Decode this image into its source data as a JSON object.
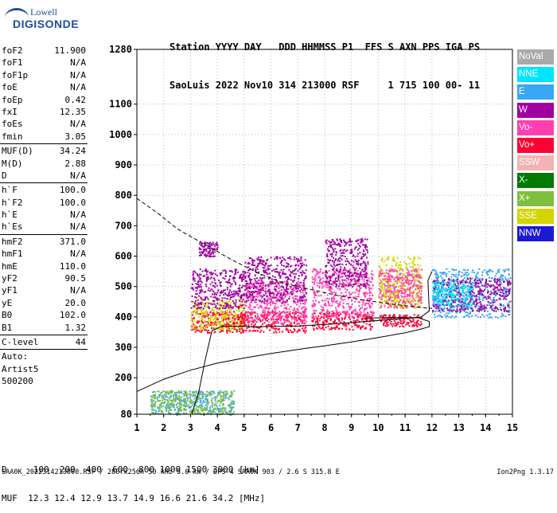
{
  "logo": {
    "line1": "Lowell",
    "line2": "DIGISONDE"
  },
  "header": {
    "line1": "Station YYYY DAY   DDD HHMMSS P1  FFS S AXN PPS IGA PS",
    "line2": "SaoLuis 2022 Nov10 314 213000 RSF     1 715 100 00- 11"
  },
  "params": {
    "group1": [
      {
        "name": "foF2",
        "value": "11.900"
      },
      {
        "name": "foF1",
        "value": "N/A"
      },
      {
        "name": "foF1p",
        "value": "N/A"
      },
      {
        "name": "foE",
        "value": "N/A"
      },
      {
        "name": "foEp",
        "value": "0.42"
      },
      {
        "name": "fxI",
        "value": "12.35"
      },
      {
        "name": "foEs",
        "value": "N/A"
      },
      {
        "name": "fmin",
        "value": "3.05"
      }
    ],
    "group2": [
      {
        "name": "MUF(D)",
        "value": "34.24"
      },
      {
        "name": "M(D)",
        "value": "2.88"
      },
      {
        "name": "D",
        "value": "N/A"
      }
    ],
    "group3": [
      {
        "name": "h`F",
        "value": "100.0"
      },
      {
        "name": "h`F2",
        "value": "100.0"
      },
      {
        "name": "h`E",
        "value": "N/A"
      },
      {
        "name": "h`Es",
        "value": "N/A"
      }
    ],
    "group4": [
      {
        "name": "hmF2",
        "value": "371.0"
      },
      {
        "name": "hmF1",
        "value": "N/A"
      },
      {
        "name": "hmE",
        "value": "110.0"
      },
      {
        "name": "yF2",
        "value": "90.5"
      },
      {
        "name": "yF1",
        "value": "N/A"
      },
      {
        "name": "yE",
        "value": "20.0"
      },
      {
        "name": "B0",
        "value": "102.0"
      },
      {
        "name": "B1",
        "value": "1.32"
      }
    ],
    "group5": [
      {
        "name": "C-level",
        "value": "44"
      }
    ],
    "auto": {
      "label": "Auto:",
      "artist": "Artist5",
      "version": "500200"
    }
  },
  "legend": [
    {
      "label": "NoVal",
      "color": "#a9a9a9"
    },
    {
      "label": "NNE",
      "color": "#00e5ff"
    },
    {
      "label": "E",
      "color": "#3aa6f5"
    },
    {
      "label": "W",
      "color": "#a000a0"
    },
    {
      "label": "Vo-",
      "color": "#ff3fb0"
    },
    {
      "label": "Vo+",
      "color": "#ff0033"
    },
    {
      "label": "SSW",
      "color": "#f3b3b3"
    },
    {
      "label": "X-",
      "color": "#007a00"
    },
    {
      "label": "X+",
      "color": "#7fbf3f"
    },
    {
      "label": "SSE",
      "color": "#d4d400"
    },
    {
      "label": "NNW",
      "color": "#1a1ad4"
    }
  ],
  "bottom": {
    "d_line": "D     100  200  400  600  800 1000 1500 3000 [km]",
    "muf_line": "MUF  12.3 12.4 12.9 13.7 14.9 16.6 21.6 34.2 [MHz]",
    "footer": "SAA0K_2022314213000.RSF / 280fx256h 50 kHz 5.0 km / DPS-4 SAA0K 903 / 2.6 S 315.8 E",
    "version": "Ion2Png 1.3.17"
  },
  "chart_data": {
    "type": "scatter",
    "xlim": [
      1,
      15
    ],
    "ylim": [
      80,
      1280
    ],
    "x_ticks": [
      "1",
      "2",
      "3",
      "4",
      "5",
      "6",
      "7",
      "8",
      "9",
      "10",
      "11",
      "12",
      "13",
      "14",
      "15"
    ],
    "y_ticks": [
      {
        "v": 80,
        "label": "80"
      },
      {
        "v": 200,
        "label": "200"
      },
      {
        "v": 300,
        "label": "300"
      },
      {
        "v": 400,
        "label": "400"
      },
      {
        "v": 500,
        "label": "500"
      },
      {
        "v": 600,
        "label": "600"
      },
      {
        "v": 700,
        "label": "700"
      },
      {
        "v": 800,
        "label": "800"
      },
      {
        "v": 900,
        "label": "900"
      },
      {
        "v": 1000,
        "label": "1000"
      },
      {
        "v": 1100,
        "label": "1100"
      },
      {
        "v": 1280,
        "label": "1280"
      }
    ],
    "grid": "dotted",
    "clusters": [
      {
        "x": [
          3.0,
          5.0
        ],
        "y": [
          350,
          420
        ],
        "color": "#ff0033"
      },
      {
        "x": [
          3.0,
          5.0
        ],
        "y": [
          360,
          460
        ],
        "color": "#d4d400"
      },
      {
        "x": [
          3.0,
          5.0
        ],
        "y": [
          430,
          560
        ],
        "color": "#a000a0"
      },
      {
        "x": [
          3.3,
          4.0
        ],
        "y": [
          600,
          650
        ],
        "color": "#a000a0"
      },
      {
        "x": [
          4.7,
          7.3
        ],
        "y": [
          350,
          420
        ],
        "color": "#ff0033"
      },
      {
        "x": [
          5.0,
          7.3
        ],
        "y": [
          380,
          520
        ],
        "color": "#ff3fb0"
      },
      {
        "x": [
          5.0,
          7.3
        ],
        "y": [
          450,
          600
        ],
        "color": "#a000a0"
      },
      {
        "x": [
          7.5,
          9.8
        ],
        "y": [
          360,
          420
        ],
        "color": "#ff0033"
      },
      {
        "x": [
          7.5,
          9.8
        ],
        "y": [
          400,
          560
        ],
        "color": "#ff3fb0"
      },
      {
        "x": [
          8.0,
          9.6
        ],
        "y": [
          500,
          660
        ],
        "color": "#a000a0"
      },
      {
        "x": [
          10.0,
          11.6
        ],
        "y": [
          370,
          410
        ],
        "color": "#ff0033"
      },
      {
        "x": [
          10.0,
          11.6
        ],
        "y": [
          430,
          600
        ],
        "color": "#d4d400"
      },
      {
        "x": [
          10.0,
          11.6
        ],
        "y": [
          430,
          560
        ],
        "color": "#ff3fb0"
      },
      {
        "x": [
          12.0,
          14.9
        ],
        "y": [
          400,
          560
        ],
        "color": "#3aa6f5"
      },
      {
        "x": [
          12.0,
          14.9
        ],
        "y": [
          420,
          530
        ],
        "color": "#a000a0"
      },
      {
        "x": [
          12.0,
          13.5
        ],
        "y": [
          430,
          520
        ],
        "color": "#00e5ff"
      },
      {
        "x": [
          1.5,
          4.6
        ],
        "y": [
          82,
          160
        ],
        "color": "#3aa6f5"
      },
      {
        "x": [
          1.5,
          4.6
        ],
        "y": [
          82,
          160
        ],
        "color": "#7fbf3f"
      }
    ],
    "curves": [
      {
        "style": "dashed",
        "points": [
          [
            1.0,
            790
          ],
          [
            1.8,
            740
          ],
          [
            2.5,
            690
          ],
          [
            3.5,
            640
          ],
          [
            4.5,
            590
          ],
          [
            5.5,
            545
          ],
          [
            6.5,
            510
          ],
          [
            7.5,
            490
          ],
          [
            8.5,
            470
          ],
          [
            9.5,
            455
          ],
          [
            10.5,
            442
          ],
          [
            11.5,
            432
          ],
          [
            12.0,
            428
          ]
        ]
      },
      {
        "style": "solid",
        "points": [
          [
            3.05,
            82
          ],
          [
            3.3,
            150
          ],
          [
            3.55,
            260
          ],
          [
            3.8,
            355
          ],
          [
            4.2,
            370
          ],
          [
            5.5,
            368
          ],
          [
            7.0,
            370
          ],
          [
            8.5,
            378
          ],
          [
            10.0,
            388
          ],
          [
            11.0,
            395
          ],
          [
            11.6,
            400
          ],
          [
            11.9,
            420
          ],
          [
            11.85,
            520
          ],
          [
            12.0,
            550
          ]
        ]
      },
      {
        "style": "solid",
        "points": [
          [
            1.0,
            155
          ],
          [
            2.0,
            195
          ],
          [
            3.0,
            225
          ],
          [
            4.0,
            248
          ],
          [
            5.0,
            265
          ],
          [
            6.0,
            280
          ],
          [
            7.0,
            293
          ],
          [
            8.0,
            305
          ],
          [
            9.0,
            318
          ],
          [
            10.0,
            332
          ],
          [
            11.0,
            348
          ],
          [
            11.5,
            358
          ],
          [
            11.9,
            368
          ],
          [
            11.9,
            385
          ],
          [
            11.5,
            397
          ],
          [
            10.5,
            398
          ],
          [
            9.5,
            396
          ]
        ]
      }
    ]
  }
}
